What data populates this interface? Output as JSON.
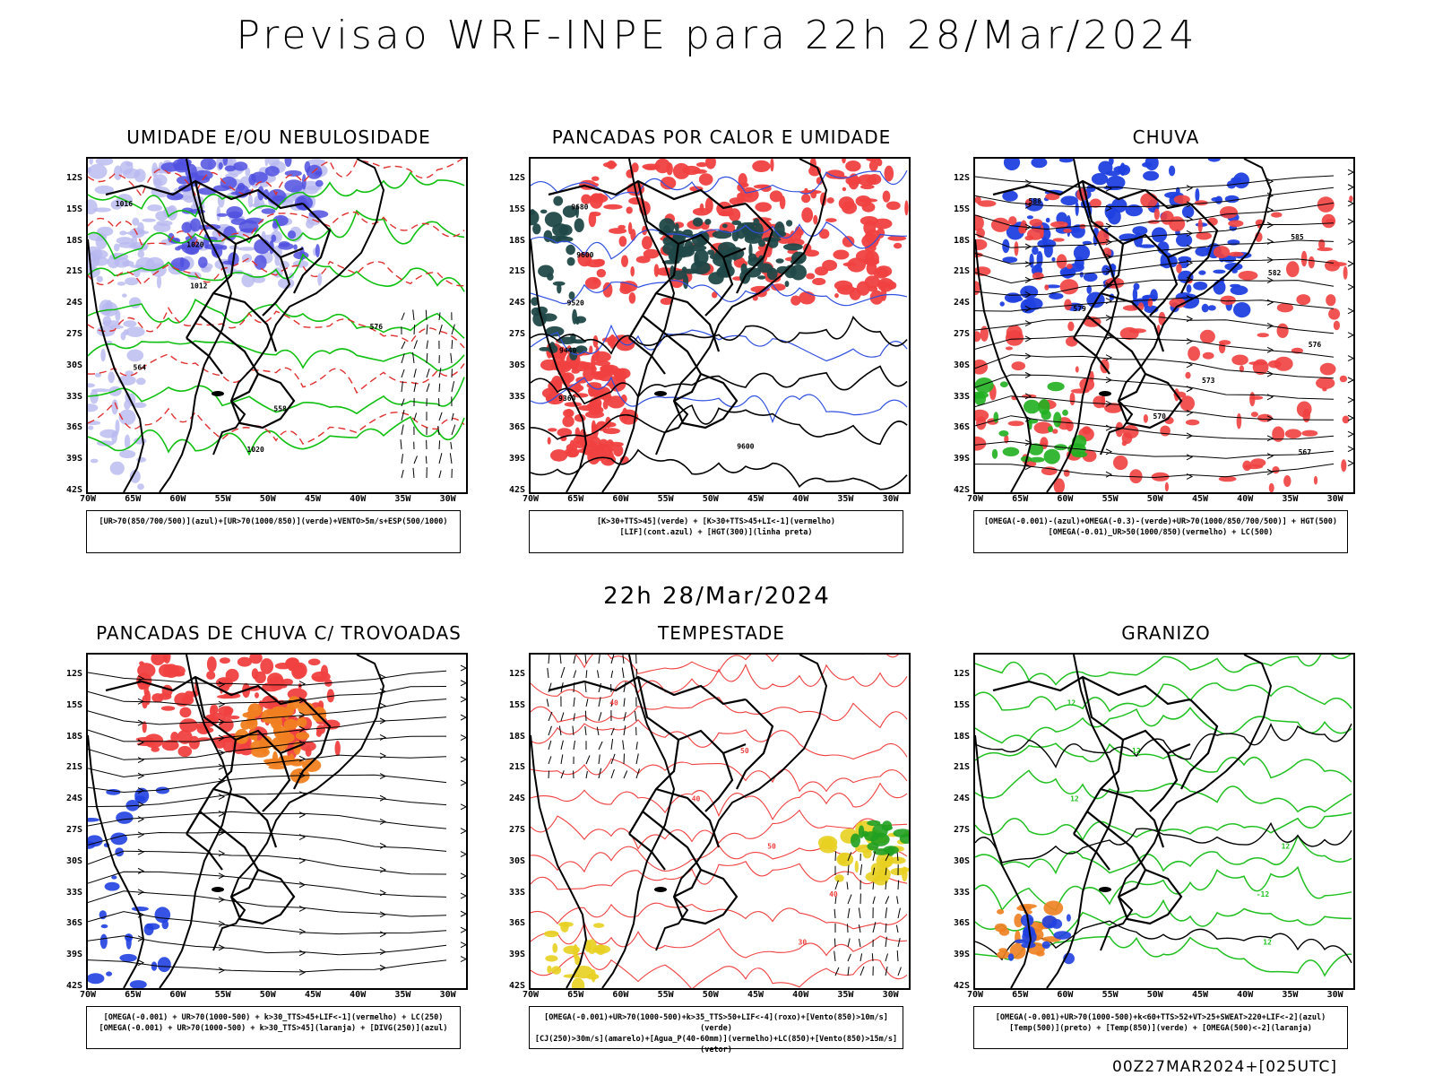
{
  "header": {
    "title": "Previsao WRF-INPE  para 22h 28/Mar/2024"
  },
  "subheader": {
    "time": "22h 28/Mar/2024"
  },
  "footer": {
    "run": "00Z27MAR2024+[025UTC]"
  },
  "lat_labels": [
    "12S",
    "15S",
    "18S",
    "21S",
    "24S",
    "27S",
    "30S",
    "33S",
    "36S",
    "39S",
    "42S"
  ],
  "lon_labels": [
    "70W",
    "65W",
    "60W",
    "55W",
    "50W",
    "45W",
    "40W",
    "35W",
    "30W"
  ],
  "panels": [
    {
      "title": "UMIDADE E/OU NEBULOSIDADE",
      "legend": [
        "[UR>70(850/700/500)](azul)+[UR>70(1000/850)](verde)+VENTO>5m/s+ESP(500/1000)"
      ],
      "colors": {
        "fill1": "#b8b8f0",
        "fill2": "#5050e0",
        "line1": "#10c010",
        "line2": "#e03030"
      },
      "contour_labels": [
        "1016",
        "1020",
        "1012",
        "576",
        "564",
        "558",
        "1020"
      ]
    },
    {
      "title": "PANCADAS POR CALOR E UMIDADE",
      "legend": [
        "[K>30+TTS>45](verde) + [K>30+TTS>45+LI<-1](vermelho)",
        "[LIF](cont.azul) + [HGT(300)](linha preta)"
      ],
      "colors": {
        "fill1": "#f04040",
        "fill2": "#204848",
        "line1": "#3050e0",
        "line2": "#000000"
      },
      "contour_labels": [
        "9680",
        "9600",
        "9520",
        "9440",
        "9360",
        "9600"
      ]
    },
    {
      "title": "CHUVA",
      "legend": [
        "[OMEGA(-0.001)-(azul)+OMEGA(-0.3)-(verde)+UR>70(1000/850/700/500)] + HGT(500)",
        "[OMEGA(-0.01)_UR>50(1000/850)(vermelho) + LC(500)"
      ],
      "colors": {
        "fill1": "#f04040",
        "fill2": "#2040e0",
        "line1": "#000000",
        "line2": "#20b020"
      },
      "contour_labels": [
        "588",
        "585",
        "582",
        "579",
        "576",
        "573",
        "570",
        "567"
      ]
    },
    {
      "title": "PANCADAS DE CHUVA C/ TROVOADAS",
      "legend": [
        "[OMEGA(-0.001) + UR>70(1000-500) + k>30_TTS>45+LIF<-1](vermelho) + LC(250)",
        "[OMEGA(-0.001) + UR>70(1000-500) + k>30_TTS>45](laranja) + [DIVG(250)](azul)"
      ],
      "colors": {
        "fill1": "#f04040",
        "fill2": "#f08020",
        "line1": "#000000",
        "line2": "#2040e0"
      },
      "contour_labels": []
    },
    {
      "title": "TEMPESTADE",
      "legend": [
        "[OMEGA(-0.001)+UR>70(1000-500)+k>35_TTS>50+LIF<-4](roxo)+[Vento(850)>10m/s](verde)",
        "[CJ(250)>30m/s](amarelo)+[Agua_P(40-60mm)](vermelho)+LC(850)+[Vento(850)>15m/s](vetor)"
      ],
      "colors": {
        "fill1": "#e8d020",
        "fill2": "#20a020",
        "line1": "#f04040",
        "line2": "#000000"
      },
      "contour_labels": [
        "40",
        "50",
        "40",
        "50",
        "40",
        "30"
      ]
    },
    {
      "title": "GRANIZO",
      "legend": [
        "[OMEGA(-0.001)+UR>70(1000-500)+k<60+TTS>52+VT>25+SWEAT>220+LIF<-2](azul)",
        "[Temp(500)](preto) + [Temp(850)](verde) + [OMEGA(500)<-2](laranja)"
      ],
      "colors": {
        "fill1": "#f08020",
        "fill2": "#2040e0",
        "line1": "#20c020",
        "line2": "#000000"
      },
      "contour_labels": [
        "12",
        "12",
        "12",
        "12",
        "-12",
        "12"
      ]
    }
  ]
}
